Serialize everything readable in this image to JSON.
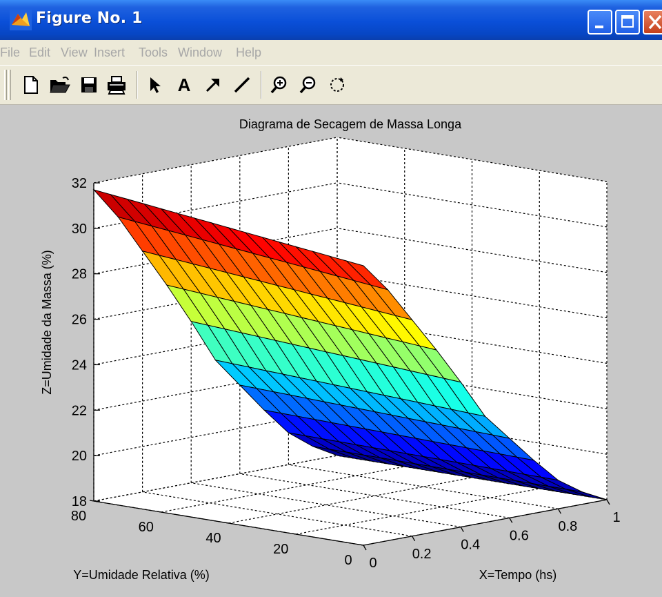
{
  "window": {
    "title": "Figure No. 1"
  },
  "menu": {
    "items": [
      "File",
      "Edit",
      "View",
      "Insert",
      "Tools",
      "Window",
      "Help"
    ]
  },
  "toolbar": {
    "tools": [
      "new-file-icon",
      "open-folder-icon",
      "save-icon",
      "print-icon",
      "select-arrow-icon",
      "insert-text-icon",
      "insert-arrow-icon",
      "insert-line-icon",
      "zoom-in-icon",
      "zoom-out-icon",
      "rotate-3d-icon"
    ],
    "text_tool_label": "A"
  },
  "colors": {
    "titlebar": "#0a4fd8",
    "menu_disabled_text": "#a7a7a7",
    "figure_background": "#c8c8c8",
    "axes_background": "#ffffff"
  },
  "chart_data": {
    "type": "surface",
    "title": "Diagrama de Secagem de Massa Longa",
    "xlabel": "X=Tempo (hs)",
    "ylabel": "Y=Umidade Relativa (%)",
    "zlabel": "Z=Umidade da Massa (%)",
    "xlim": [
      0,
      1
    ],
    "ylim": [
      0,
      80
    ],
    "zlim": [
      18,
      32
    ],
    "x_ticks": [
      "0",
      "0.2",
      "0.4",
      "0.6",
      "0.8",
      "1"
    ],
    "y_ticks": [
      "0",
      "20",
      "40",
      "60",
      "80"
    ],
    "z_ticks": [
      "18",
      "20",
      "22",
      "24",
      "26",
      "28",
      "30",
      "32"
    ],
    "grid": true,
    "colormap": "jet",
    "surface_profile": {
      "description_values_at_x_0": {
        "y": [
          80,
          0
        ],
        "z": [
          31.7,
          30.3
        ]
      },
      "z_at_y_80": [
        31.7,
        30.3,
        28.6,
        26.9,
        25.1,
        23.2,
        21.9,
        20.6,
        19.4,
        18.6,
        18.0
      ],
      "x_samples": [
        0,
        0.1,
        0.2,
        0.3,
        0.4,
        0.5,
        0.6,
        0.7,
        0.8,
        0.9,
        1.0
      ]
    }
  }
}
